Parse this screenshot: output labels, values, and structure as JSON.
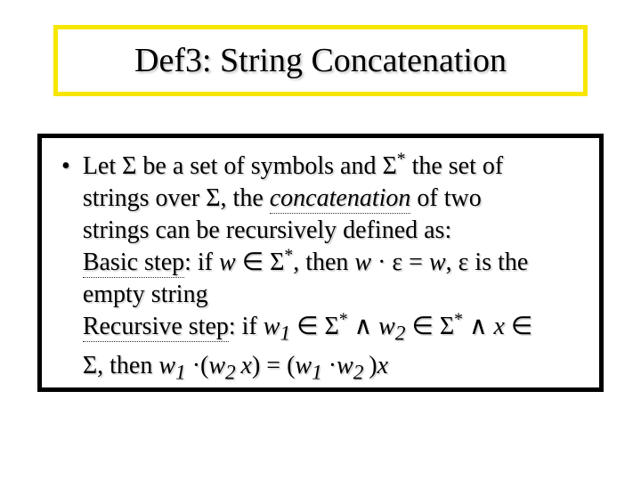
{
  "colors": {
    "title_border": "#f7e600",
    "body_border": "#000000",
    "background": "#ffffff",
    "text": "#000000",
    "shadow": "#c8c8c8"
  },
  "typography": {
    "title_fontsize": 38,
    "body_fontsize": 28,
    "line_height": 36,
    "font_family": "Times New Roman"
  },
  "title": "Def3: String Concatenation",
  "bullet_char": "•",
  "body": {
    "line1_a": "Let Σ be a set of symbols and Σ",
    "line1_b": " the set of",
    "line2_a": "strings over Σ, the ",
    "line2_concat": "concatenation",
    "line2_b": " of two",
    "line3": "strings can be recursively defined as:",
    "line4_label": "Basic step",
    "line4_a": ": if ",
    "line4_w": "w",
    "line4_b": " ∈ Σ",
    "line4_c": ",  then ",
    "line4_w2": "w",
    "line4_dot": " · ε = ",
    "line4_w3": "w",
    "line4_d": ", ε is the",
    "line5": "empty string",
    "line6_label": "Recursive step",
    "line6_a": ": if ",
    "line6_w1": "w",
    "line6_s1": "1",
    "line6_b": " ∈ Σ",
    "line6_c": " ∧ ",
    "line6_w2": "w",
    "line6_s2": "2",
    "line6_d": " ∈ Σ",
    "line6_e": " ∧ ",
    "line6_x": "x",
    "line6_f": " ∈",
    "line7_a": "Σ, then ",
    "line7_w1": "w",
    "line7_s1": "1",
    "line7_dot1": " ·(",
    "line7_w2": "w",
    "line7_s2": "2 ",
    "line7_x": "x",
    "line7_b": ") = (",
    "line7_w3": "w",
    "line7_s3": "1",
    "line7_dot2": " ·",
    "line7_w4": "w",
    "line7_s4": "2 ",
    "line7_c": ")",
    "line7_x2": "x",
    "star": "*"
  }
}
